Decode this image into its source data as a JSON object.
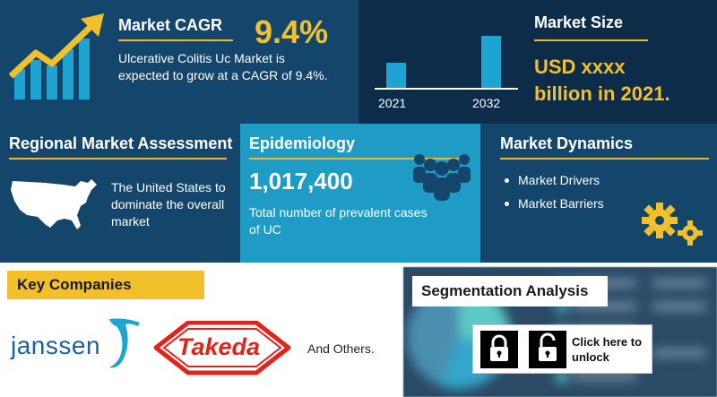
{
  "cagr": {
    "title": "Market CAGR",
    "value": "9.4%",
    "description": "Ulcerative Colitis Uc  Market is expected to grow at a CAGR of 9.4%."
  },
  "market_size": {
    "title": "Market Size",
    "year_start": "2021",
    "year_end": "2032",
    "value_line1": "USD xxxx",
    "value_line2": "billion  in 2021."
  },
  "regional": {
    "title": "Regional Market Assessment",
    "description": "The United States to dominate the overall market"
  },
  "epidemiology": {
    "title": "Epidemiology",
    "number": "1,017,400",
    "description": "Total number of prevalent cases of UC"
  },
  "dynamics": {
    "title": "Market Dynamics",
    "items": [
      "Market Drivers",
      "Market Barriers"
    ]
  },
  "key_companies": {
    "title": "Key Companies",
    "companies": [
      "janssen",
      "Takeda"
    ],
    "others": "And Others."
  },
  "segmentation": {
    "title": "Segmentation Analysis",
    "unlock_label": "Click here to unlock"
  },
  "colors": {
    "navy": "#14466b",
    "dark_navy": "#0c2c4a",
    "cyan": "#1e9cc6",
    "yellow": "#f2c02b",
    "takeda_red": "#e2231a",
    "janssen_blue": "#1a5fa8"
  }
}
